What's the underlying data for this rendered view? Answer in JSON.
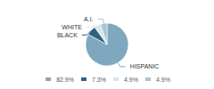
{
  "chart_data": {
    "type": "pie",
    "categories": [
      "HISPANIC",
      "BLACK",
      "WHITE",
      "A.I."
    ],
    "values": [
      82.9,
      7.3,
      4.9,
      4.9
    ],
    "value_labels": [
      "82.9%",
      "7.3%",
      "4.9%",
      "4.9%"
    ],
    "colors": [
      "#7FA8BE",
      "#2E6080",
      "#D6E4ED",
      "#A8C4D4"
    ],
    "legend": "bottom"
  }
}
